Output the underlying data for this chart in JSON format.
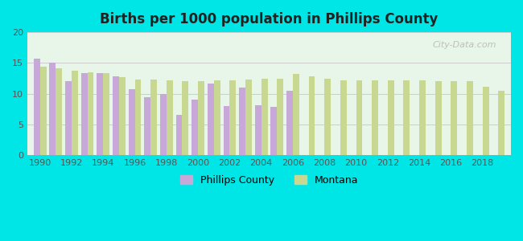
{
  "title": "Births per 1000 population in Phillips County",
  "background_color": "#00e5e5",
  "plot_bg_top": "#e8f5e8",
  "plot_bg_bottom": "#f0fff0",
  "years": [
    1990,
    1991,
    1992,
    1993,
    1994,
    1995,
    1996,
    1997,
    1998,
    1999,
    2000,
    2001,
    2002,
    2003,
    2004,
    2005,
    2006,
    2007,
    2008,
    2009,
    2010,
    2011,
    2012,
    2013,
    2014,
    2015,
    2016,
    2017,
    2018,
    2019
  ],
  "phillips_county": [
    15.7,
    15.1,
    12.0,
    13.3,
    13.3,
    12.9,
    10.8,
    9.5,
    10.0,
    6.6,
    9.0,
    11.7,
    8.0,
    11.0,
    8.2,
    7.9,
    10.5,
    null,
    null,
    null,
    null,
    null,
    null,
    null,
    null,
    null,
    null,
    null,
    null,
    null
  ],
  "montana": [
    14.4,
    14.2,
    13.8,
    13.5,
    13.3,
    12.7,
    12.3,
    12.3,
    12.2,
    12.1,
    12.1,
    12.2,
    12.2,
    12.3,
    12.4,
    12.4,
    13.2,
    12.8,
    12.5,
    12.2,
    12.2,
    12.2,
    12.2,
    12.2,
    12.2,
    12.1,
    12.0,
    12.0,
    11.2,
    10.5
  ],
  "phillips_color": "#c8a8d8",
  "montana_color": "#c8d890",
  "ylim": [
    0,
    20
  ],
  "yticks": [
    0,
    5,
    10,
    15,
    20
  ],
  "bar_width": 0.4,
  "watermark": "City-Data.com"
}
